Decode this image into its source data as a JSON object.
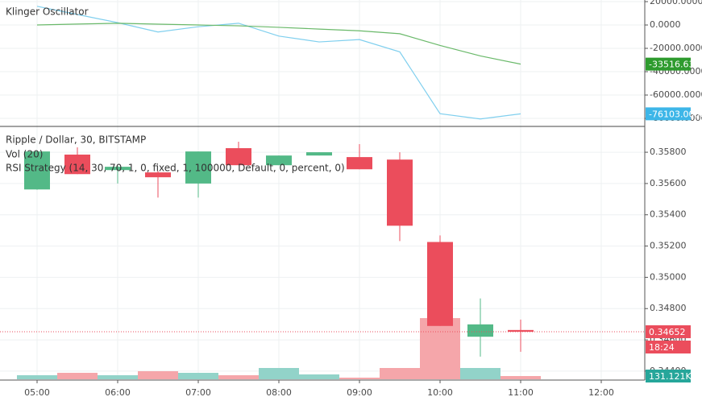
{
  "chart_data": [
    {
      "type": "line",
      "title": "Klinger Oscillator",
      "x": [
        "05:00",
        "05:30",
        "06:00",
        "06:30",
        "07:00",
        "07:30",
        "08:00",
        "08:30",
        "09:00",
        "09:30",
        "10:00",
        "10:30",
        "11:00"
      ],
      "series": [
        {
          "color": "#7fcfee",
          "values": [
            16000,
            9000,
            2000,
            -6000,
            -1500,
            1500,
            -9500,
            -14500,
            -12500,
            -23000,
            -76000,
            -80500,
            -76103.003
          ],
          "last_value_label": "-76103.0030",
          "label_color": "#3db6e8"
        },
        {
          "color": "#6ab96a",
          "values": [
            0,
            800,
            1500,
            700,
            0,
            -700,
            -2000,
            -3500,
            -5000,
            -7500,
            -17500,
            -26500,
            -33516.6308
          ],
          "last_value_label": "-33516.6308",
          "label_color": "#2e9b2e"
        }
      ],
      "ylim": [
        -85500,
        21400
      ],
      "yticks": [
        {
          "value": 20000,
          "label": "20000.0000"
        },
        {
          "value": 0,
          "label": "0.0000"
        },
        {
          "value": -20000,
          "label": "-20000.0000"
        },
        {
          "value": -40000,
          "label": "-40000.0000"
        },
        {
          "value": -60000,
          "label": "-60000.0000"
        },
        {
          "value": -80000,
          "label": "-80000.0000"
        }
      ],
      "grid": true
    },
    {
      "type": "candlestick",
      "title": "Ripple / Dollar, 30, BITSTAMP",
      "indicators": [
        "Vol (20)",
        "RSI Strategy (14, 30, 70, 1, 0, fixed, 1, 100000, Default, 0, percent, 0)"
      ],
      "x": [
        "05:00",
        "05:30",
        "06:00",
        "06:30",
        "07:00",
        "07:30",
        "08:00",
        "08:30",
        "09:00",
        "09:30",
        "10:00",
        "10:30",
        "11:00"
      ],
      "open": [
        0.35562,
        0.35785,
        0.35686,
        0.35671,
        0.356,
        0.35826,
        0.35717,
        0.35779,
        0.35769,
        0.35753,
        0.35226,
        0.3462,
        0.34663
      ],
      "high": [
        0.3581,
        0.35831,
        0.35712,
        0.3568,
        0.35805,
        0.35867,
        0.35779,
        0.358,
        0.35852,
        0.358,
        0.35268,
        0.34865,
        0.3473
      ],
      "low": [
        0.3556,
        0.3566,
        0.356,
        0.3551,
        0.3551,
        0.35717,
        0.35717,
        0.35779,
        0.35691,
        0.35232,
        0.34689,
        0.34493,
        0.34524
      ],
      "close": [
        0.35805,
        0.3566,
        0.35707,
        0.3564,
        0.35805,
        0.35717,
        0.35779,
        0.358,
        0.35691,
        0.3533,
        0.34689,
        0.34699,
        0.34652
      ],
      "up_color": "#53b987",
      "down_color": "#eb4d5c",
      "volume": [
        164000,
        262000,
        164000,
        328000,
        262000,
        164000,
        459000,
        197000,
        66000,
        459000,
        2490000,
        459000,
        131121
      ],
      "volume_up_color": "#92d3c9",
      "volume_down_color": "#f5a6aa",
      "y2lim": [
        0,
        10260000
      ],
      "volume_last_label": "131.121K",
      "last_price": 0.34652,
      "last_price_label": "0.34652",
      "countdown": "18:24",
      "ylim": [
        0.34348,
        0.3596
      ],
      "yticks": [
        {
          "value": 0.358,
          "label": "0.35800"
        },
        {
          "value": 0.356,
          "label": "0.35600"
        },
        {
          "value": 0.354,
          "label": "0.35400"
        },
        {
          "value": 0.352,
          "label": "0.35200"
        },
        {
          "value": 0.35,
          "label": "0.35000"
        },
        {
          "value": 0.348,
          "label": "0.34800"
        },
        {
          "value": 0.346,
          "label": "0.34600"
        },
        {
          "value": 0.344,
          "label": "0.34400"
        }
      ],
      "xticks": [
        "05:00",
        "06:00",
        "07:00",
        "08:00",
        "09:00",
        "10:00",
        "11:00",
        "12:00"
      ],
      "grid": true
    }
  ]
}
